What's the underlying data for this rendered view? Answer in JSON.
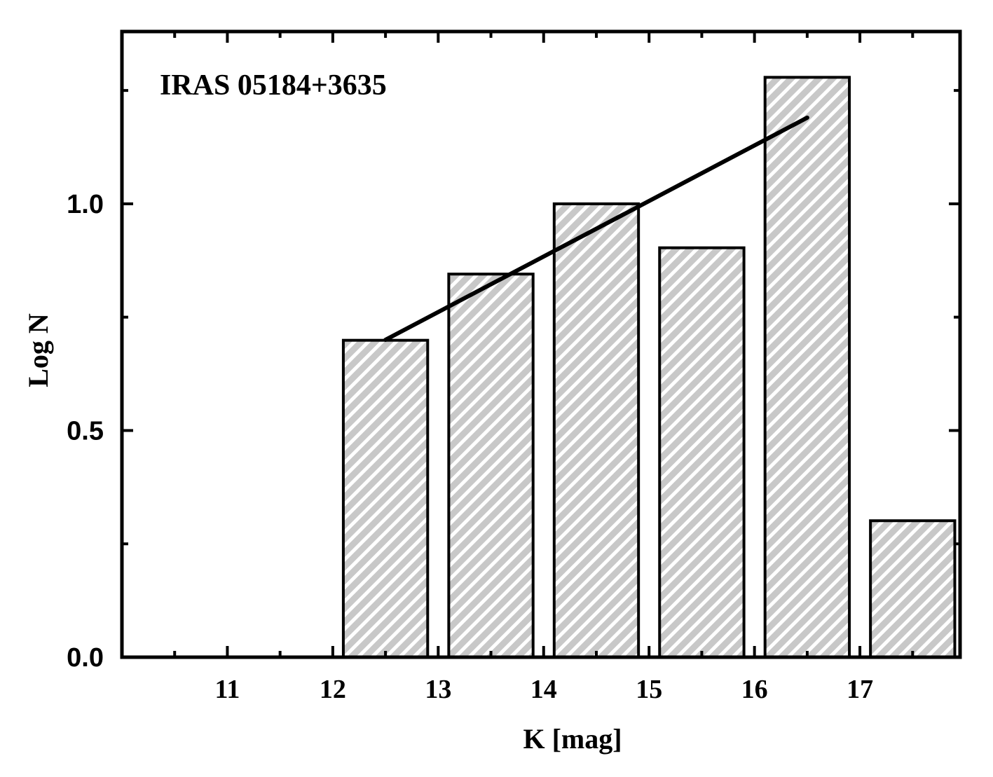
{
  "chart_data": {
    "type": "bar",
    "annotation": "IRAS 05184+3635",
    "xlabel": "K [mag]",
    "ylabel": "Log N",
    "xlim": [
      10.0,
      17.95
    ],
    "ylim": [
      0.0,
      1.38
    ],
    "x_ticks_major": [
      11,
      12,
      13,
      14,
      15,
      16,
      17
    ],
    "x_tick_labels": [
      "11",
      "12",
      "13",
      "14",
      "15",
      "16",
      "17"
    ],
    "y_ticks_major": [
      0.0,
      0.5,
      1.0
    ],
    "y_tick_labels": [
      "0.0",
      "0.5",
      "1.0"
    ],
    "y_ticks_minor": [
      0.25,
      0.75,
      1.25
    ],
    "bars": [
      {
        "left": 12.1,
        "right": 12.9,
        "value": 0.699
      },
      {
        "left": 13.1,
        "right": 13.9,
        "value": 0.845
      },
      {
        "left": 14.1,
        "right": 14.9,
        "value": 1.0
      },
      {
        "left": 15.1,
        "right": 15.9,
        "value": 0.903
      },
      {
        "left": 16.1,
        "right": 16.9,
        "value": 1.279
      },
      {
        "left": 17.1,
        "right": 17.9,
        "value": 0.301
      }
    ],
    "fit_line": {
      "x": [
        12.5,
        16.5
      ],
      "y": [
        0.7,
        1.19
      ]
    },
    "bar_fill": "#c8c8c8",
    "bar_hatch": "#ffffff",
    "axis_color": "#000000",
    "grid": false
  }
}
